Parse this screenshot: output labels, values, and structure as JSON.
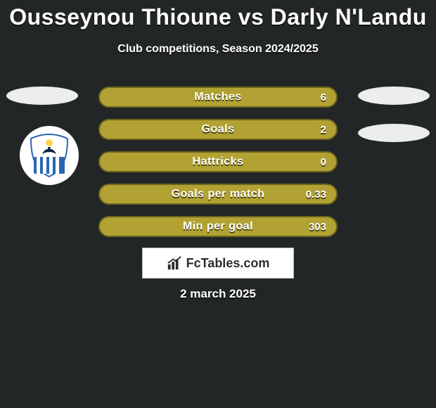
{
  "header": {
    "title": "Ousseynou Thioune vs Darly N'Landu",
    "subtitle": "Club competitions, Season 2024/2025"
  },
  "colors": {
    "background": "#232626",
    "bar_fill": "#b1a233",
    "bar_border": "#6c641f",
    "ellipse": "#eceeee",
    "text": "#ffffff"
  },
  "stats": [
    {
      "label": "Matches",
      "value": "6"
    },
    {
      "label": "Goals",
      "value": "2"
    },
    {
      "label": "Hattricks",
      "value": "0"
    },
    {
      "label": "Goals per match",
      "value": "0.33"
    },
    {
      "label": "Min per goal",
      "value": "303"
    }
  ],
  "footer": {
    "site": "FcTables.com",
    "date": "2 march 2025"
  },
  "club": {
    "name": "anorthosis"
  }
}
